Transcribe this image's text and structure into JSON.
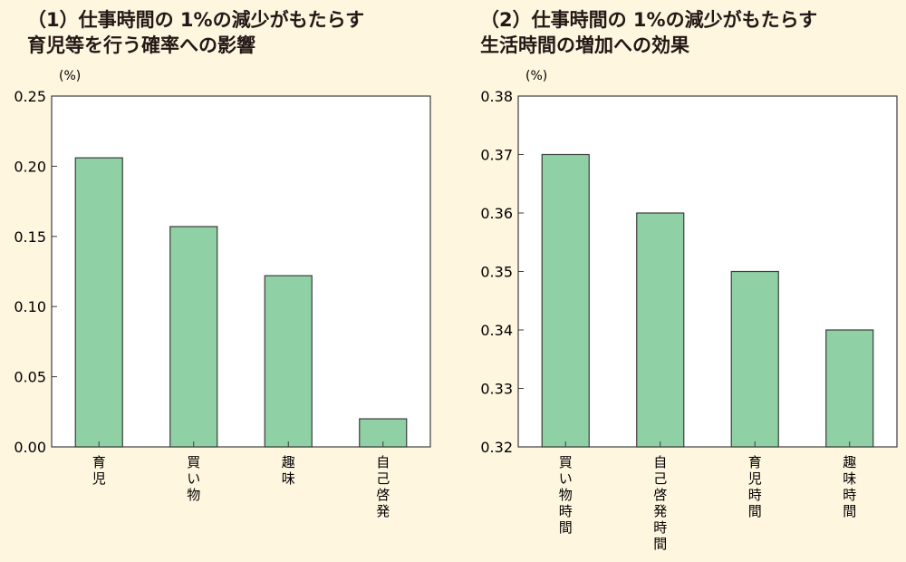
{
  "colors": {
    "background": "#fff6e0",
    "plot_background": "#ffffff",
    "bar_fill": "#8fd0a4",
    "bar_stroke": "#3c3c3c"
  },
  "chart_data": [
    {
      "type": "bar",
      "title": "（1）仕事時間の 1%の減少がもたらす\n育児等を行う確率への影響",
      "unit_label": "(%)",
      "categories": [
        "育児",
        "買い物",
        "趣味",
        "自己啓発"
      ],
      "values": [
        0.206,
        0.157,
        0.122,
        0.02
      ],
      "ylim": [
        0,
        0.25
      ],
      "yticks": [
        "0.00",
        "0.05",
        "0.10",
        "0.15",
        "0.20",
        "0.25"
      ],
      "xlabel": "",
      "ylabel": "",
      "grid": false,
      "legend": "none"
    },
    {
      "type": "bar",
      "title": "（2）仕事時間の 1%の減少がもたらす\n生活時間の増加への効果",
      "unit_label": "(%)",
      "categories": [
        "買い物時間",
        "自己啓発時間",
        "育児時間",
        "趣味時間"
      ],
      "values": [
        0.37,
        0.36,
        0.35,
        0.34
      ],
      "ylim": [
        0.32,
        0.38
      ],
      "yticks": [
        "0.32",
        "0.33",
        "0.34",
        "0.35",
        "0.36",
        "0.37",
        "0.38"
      ],
      "xlabel": "",
      "ylabel": "",
      "grid": false,
      "legend": "none"
    }
  ]
}
